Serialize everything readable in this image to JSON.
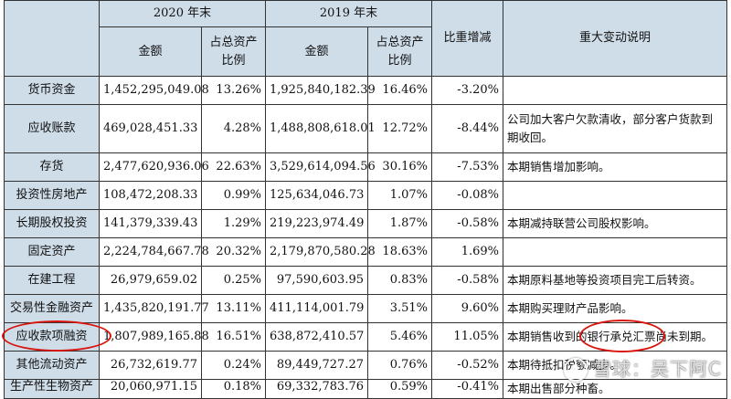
{
  "header": {
    "group_2020": "2020 年末",
    "group_2019": "2019 年末",
    "amount": "金额",
    "ratio": "占总资产比例",
    "change": "比重增减",
    "explanation": "重大变动说明"
  },
  "rows": [
    {
      "item": "货币资金",
      "amt2020": "1,452,295,049.08",
      "pct2020": "13.26%",
      "amt2019": "1,925,840,182.39",
      "pct2019": "16.46%",
      "change": "-3.20%",
      "note": ""
    },
    {
      "item": "应收账款",
      "amt2020": "469,028,451.33",
      "pct2020": "4.28%",
      "amt2019": "1,488,808,618.01",
      "pct2019": "12.72%",
      "change": "-8.44%",
      "note": "公司加大客户欠款清收，部分客户货款到期收回。"
    },
    {
      "item": "存货",
      "amt2020": "2,477,620,936.06",
      "pct2020": "22.63%",
      "amt2019": "3,529,614,094.56",
      "pct2019": "30.16%",
      "change": "-7.53%",
      "note": "本期销售增加影响。"
    },
    {
      "item": "投资性房地产",
      "amt2020": "108,472,208.33",
      "pct2020": "0.99%",
      "amt2019": "125,634,046.73",
      "pct2019": "1.07%",
      "change": "-0.08%",
      "note": ""
    },
    {
      "item": "长期股权投资",
      "amt2020": "141,379,339.43",
      "pct2020": "1.29%",
      "amt2019": "219,223,974.49",
      "pct2019": "1.87%",
      "change": "-0.58%",
      "note": "本期减持联营公司股权影响。"
    },
    {
      "item": "固定资产",
      "amt2020": "2,224,784,667.78",
      "pct2020": "20.32%",
      "amt2019": "2,179,870,580.28",
      "pct2019": "18.63%",
      "change": "1.69%",
      "note": ""
    },
    {
      "item": "在建工程",
      "amt2020": "26,979,659.02",
      "pct2020": "0.25%",
      "amt2019": "97,590,603.95",
      "pct2019": "0.83%",
      "change": "-0.58%",
      "note": "本期原料基地等投资项目完工后转资。"
    },
    {
      "item": "交易性金融资产",
      "amt2020": "1,435,820,191.77",
      "pct2020": "13.11%",
      "amt2019": "411,114,001.79",
      "pct2019": "3.51%",
      "change": "9.60%",
      "note": "本期购买理财产品影响。"
    },
    {
      "item": "应收款项融资",
      "amt2020": "1,807,989,165.88",
      "pct2020": "16.51%",
      "amt2019": "638,872,410.57",
      "pct2019": "5.46%",
      "change": "11.05%",
      "note": "本期销售收到的银行承兑汇票尚未到期。"
    },
    {
      "item": "其他流动资产",
      "amt2020": "26,732,619.77",
      "pct2020": "0.24%",
      "amt2019": "89,449,727.27",
      "pct2019": "0.76%",
      "change": "-0.52%",
      "note": "本期待抵扣税额减少。"
    },
    {
      "item": "生产性生物资产",
      "amt2020": "20,060,971.15",
      "pct2020": "0.18%",
      "amt2019": "69,332,783.76",
      "pct2019": "0.59%",
      "change": "-0.41%",
      "note": "本期出售部分种畜。"
    }
  ],
  "watermark": "雪球：吴下阿C",
  "colors": {
    "header_bg": "#cfdde9",
    "annotation_red": "#d9150f"
  }
}
